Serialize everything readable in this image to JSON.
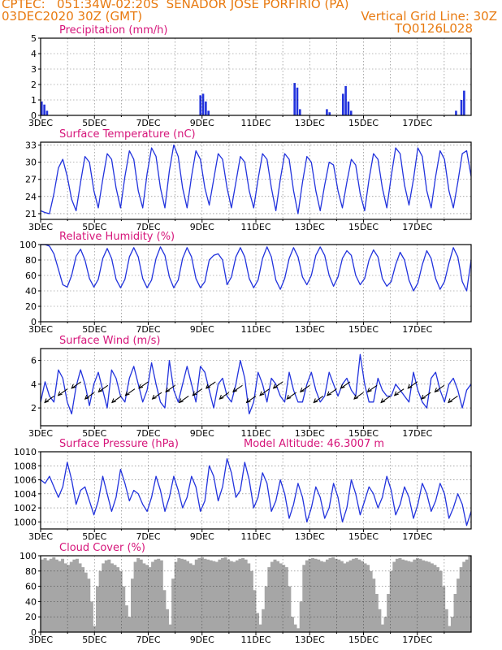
{
  "header": {
    "line1_left": "CPTEC:   051:34W-02:20S  SENADOR JOSE PORFIRIO (PA)",
    "line2_left": "03DEC2020 30Z (GMT)",
    "line2_right": "Vertical Grid Line: 30Z",
    "line3_right": "TQ0126L028"
  },
  "colors": {
    "header": "#e87a10",
    "title": "#d6157a",
    "line": "#2233dd",
    "cloud": "#a6a6a6"
  },
  "chart_data": [
    {
      "type": "bar",
      "title": "Precipitation (mm/h)",
      "x_tick_labels": [
        "3DEC",
        "5DEC",
        "7DEC",
        "9DEC",
        "11DEC",
        "13DEC",
        "15DEC",
        "17DEC"
      ],
      "ylim": [
        0,
        5
      ],
      "y_ticks": [
        "0",
        "1",
        "2",
        "3",
        "4",
        "5"
      ],
      "series": [
        {
          "name": "precipitation",
          "points": [
            [
              0.0,
              0.9
            ],
            [
              0.1,
              0.7
            ],
            [
              0.2,
              0.3
            ],
            [
              5.9,
              1.3
            ],
            [
              6.0,
              1.4
            ],
            [
              6.1,
              0.9
            ],
            [
              6.2,
              0.3
            ],
            [
              9.4,
              2.1
            ],
            [
              9.5,
              1.8
            ],
            [
              9.6,
              0.4
            ],
            [
              10.6,
              0.4
            ],
            [
              10.7,
              0.2
            ],
            [
              11.2,
              1.4
            ],
            [
              11.3,
              1.9
            ],
            [
              11.4,
              0.9
            ],
            [
              11.5,
              0.3
            ],
            [
              15.4,
              0.3
            ],
            [
              15.6,
              1.0
            ],
            [
              15.7,
              1.6
            ]
          ]
        }
      ]
    },
    {
      "type": "line",
      "title": "Surface Temperature (nC)",
      "x_tick_labels": [
        "3DEC",
        "5DEC",
        "7DEC",
        "9DEC",
        "11DEC",
        "13DEC",
        "15DEC",
        "17DEC"
      ],
      "ylim": [
        20,
        33.5
      ],
      "y_ticks": [
        "21",
        "24",
        "27",
        "30",
        "33"
      ],
      "series": [
        {
          "name": "temperature",
          "values": [
            21.5,
            21.2,
            21.0,
            24.5,
            29.0,
            30.5,
            27.5,
            23.5,
            21.5,
            26.5,
            31.0,
            30.0,
            25.0,
            22.0,
            27.0,
            31.5,
            30.5,
            25.5,
            22.0,
            27.5,
            32.0,
            30.5,
            25.0,
            22.0,
            28.0,
            32.5,
            31.0,
            25.5,
            22.0,
            28.5,
            33.0,
            31.0,
            25.5,
            22.0,
            27.5,
            32.0,
            30.5,
            25.5,
            22.5,
            27.0,
            31.5,
            30.5,
            25.5,
            22.0,
            26.5,
            31.0,
            30.0,
            25.0,
            22.0,
            27.0,
            31.5,
            30.5,
            25.5,
            21.5,
            27.0,
            31.5,
            30.5,
            25.0,
            21.0,
            26.5,
            31.0,
            30.0,
            25.0,
            21.5,
            26.0,
            30.0,
            29.5,
            25.0,
            22.0,
            26.5,
            30.5,
            29.5,
            24.5,
            21.5,
            27.0,
            31.5,
            30.5,
            25.5,
            22.0,
            27.5,
            32.5,
            31.5,
            26.0,
            22.5,
            27.0,
            32.5,
            31.0,
            25.0,
            22.0,
            27.5,
            32.0,
            30.5,
            25.0,
            22.0,
            26.5,
            31.5,
            32.0,
            27.5
          ]
        }
      ]
    },
    {
      "type": "line",
      "title": "Relative Humidity (%)",
      "x_tick_labels": [
        "3DEC",
        "5DEC",
        "7DEC",
        "9DEC",
        "11DEC",
        "13DEC",
        "15DEC",
        "17DEC"
      ],
      "ylim": [
        0,
        100
      ],
      "y_ticks": [
        "0",
        "20",
        "40",
        "60",
        "80",
        "100"
      ],
      "series": [
        {
          "name": "humidity",
          "values": [
            100,
            100,
            98,
            88,
            68,
            48,
            45,
            60,
            85,
            94,
            80,
            56,
            45,
            55,
            82,
            95,
            82,
            55,
            44,
            55,
            84,
            96,
            84,
            56,
            44,
            54,
            82,
            97,
            86,
            58,
            44,
            54,
            82,
            96,
            84,
            56,
            44,
            52,
            80,
            86,
            88,
            80,
            48,
            58,
            84,
            96,
            84,
            56,
            44,
            54,
            82,
            97,
            84,
            54,
            42,
            56,
            82,
            96,
            84,
            58,
            48,
            60,
            86,
            97,
            86,
            60,
            46,
            58,
            82,
            92,
            86,
            60,
            48,
            56,
            80,
            93,
            84,
            56,
            46,
            52,
            74,
            90,
            80,
            54,
            40,
            50,
            74,
            92,
            82,
            56,
            42,
            52,
            76,
            96,
            84,
            52,
            40,
            80
          ]
        }
      ]
    },
    {
      "type": "line",
      "title": "Surface Wind (m/s)",
      "x_tick_labels": [
        "3DEC",
        "5DEC",
        "7DEC",
        "9DEC",
        "11DEC",
        "13DEC",
        "15DEC",
        "17DEC"
      ],
      "ylim": [
        0.5,
        7
      ],
      "y_ticks": [
        "2",
        "4",
        "6"
      ],
      "series": [
        {
          "name": "wind_speed",
          "values": [
            2.5,
            4.2,
            3.0,
            2.5,
            5.2,
            4.5,
            2.5,
            1.5,
            3.8,
            5.2,
            4.0,
            2.2,
            4.0,
            5.0,
            3.5,
            2.0,
            5.2,
            4.5,
            3.0,
            2.5,
            4.5,
            5.5,
            4.0,
            2.5,
            3.5,
            5.8,
            4.0,
            2.5,
            2.0,
            6.0,
            3.5,
            2.5,
            4.0,
            5.5,
            4.0,
            2.5,
            5.5,
            5.0,
            3.5,
            2.0,
            4.0,
            4.5,
            3.0,
            2.5,
            4.0,
            6.0,
            4.5,
            1.5,
            2.5,
            5.0,
            4.0,
            2.5,
            4.5,
            4.0,
            3.0,
            2.5,
            5.0,
            3.5,
            2.5,
            2.5,
            4.0,
            5.0,
            3.5,
            2.5,
            3.0,
            5.0,
            4.0,
            3.0,
            4.0,
            4.5,
            3.5,
            3.0,
            6.5,
            4.0,
            2.5,
            2.5,
            4.5,
            3.5,
            3.0,
            3.0,
            4.0,
            3.5,
            3.0,
            2.5,
            5.0,
            3.5,
            2.5,
            2.0,
            4.5,
            5.0,
            3.5,
            2.5,
            4.0,
            4.5,
            3.5,
            2.0,
            3.5,
            4.0
          ]
        }
      ]
    },
    {
      "type": "line",
      "title": "Surface Pressure (hPa)",
      "annotation": "Model Altitude: 46.3007 m",
      "x_tick_labels": [
        "3DEC",
        "5DEC",
        "7DEC",
        "9DEC",
        "11DEC",
        "13DEC",
        "15DEC",
        "17DEC"
      ],
      "ylim": [
        999,
        1010
      ],
      "y_ticks": [
        "1000",
        "1002",
        "1004",
        "1006",
        "1008",
        "1010"
      ],
      "series": [
        {
          "name": "pressure",
          "values": [
            1006.0,
            1005.5,
            1006.5,
            1005.0,
            1003.5,
            1005.0,
            1008.5,
            1006.0,
            1002.5,
            1004.5,
            1005.0,
            1003.0,
            1001.0,
            1003.0,
            1006.5,
            1004.0,
            1001.5,
            1003.5,
            1007.5,
            1005.5,
            1003.0,
            1004.5,
            1004.0,
            1002.5,
            1001.5,
            1003.5,
            1006.5,
            1004.5,
            1001.5,
            1003.5,
            1006.5,
            1004.5,
            1002.0,
            1003.5,
            1006.5,
            1005.0,
            1001.5,
            1003.0,
            1008.0,
            1006.5,
            1003.0,
            1005.0,
            1009.0,
            1007.0,
            1003.5,
            1004.5,
            1008.5,
            1006.0,
            1002.0,
            1003.5,
            1007.0,
            1005.5,
            1001.5,
            1003.0,
            1006.0,
            1004.0,
            1000.5,
            1002.5,
            1005.5,
            1003.5,
            1000.0,
            1002.0,
            1005.0,
            1003.5,
            1000.5,
            1002.0,
            1005.5,
            1003.5,
            1000.0,
            1002.0,
            1006.0,
            1004.0,
            1001.0,
            1003.0,
            1005.0,
            1004.0,
            1002.0,
            1003.5,
            1006.5,
            1004.5,
            1001.0,
            1002.5,
            1005.0,
            1003.5,
            1000.5,
            1002.5,
            1005.5,
            1004.0,
            1001.5,
            1003.0,
            1005.5,
            1004.0,
            1000.5,
            1002.0,
            1004.0,
            1002.5,
            999.5,
            1001.5
          ]
        }
      ]
    },
    {
      "type": "area",
      "title": "Cloud Cover (%)",
      "x_tick_labels": [
        "3DEC",
        "5DEC",
        "7DEC",
        "9DEC",
        "11DEC",
        "13DEC",
        "15DEC",
        "17DEC"
      ],
      "ylim": [
        0,
        100
      ],
      "y_ticks": [
        "0",
        "20",
        "40",
        "60",
        "80",
        "100"
      ],
      "series": [
        {
          "name": "cloud_cover",
          "values": [
            95,
            97,
            94,
            96,
            98,
            95,
            93,
            96,
            90,
            88,
            92,
            95,
            96,
            90,
            85,
            78,
            70,
            40,
            8,
            60,
            80,
            90,
            94,
            95,
            90,
            88,
            85,
            80,
            60,
            35,
            20,
            70,
            92,
            97,
            95,
            90,
            88,
            85,
            92,
            95,
            96,
            94,
            55,
            30,
            10,
            70,
            92,
            97,
            96,
            95,
            93,
            90,
            88,
            95,
            97,
            98,
            96,
            95,
            94,
            93,
            92,
            95,
            97,
            98,
            95,
            93,
            92,
            94,
            96,
            97,
            95,
            90,
            80,
            55,
            25,
            10,
            30,
            60,
            85,
            92,
            95,
            93,
            90,
            88,
            85,
            60,
            20,
            10,
            5,
            40,
            88,
            94,
            96,
            97,
            96,
            95,
            93,
            92,
            95,
            97,
            98,
            96,
            95,
            93,
            90,
            92,
            94,
            96,
            97,
            95,
            93,
            90,
            88,
            80,
            70,
            50,
            30,
            10,
            20,
            50,
            80,
            92,
            96,
            97,
            95,
            94,
            93,
            92,
            95,
            97,
            96,
            94,
            93,
            92,
            90,
            88,
            85,
            80,
            60,
            30,
            8,
            20,
            50,
            70,
            85,
            92,
            95,
            100
          ]
        }
      ]
    }
  ]
}
